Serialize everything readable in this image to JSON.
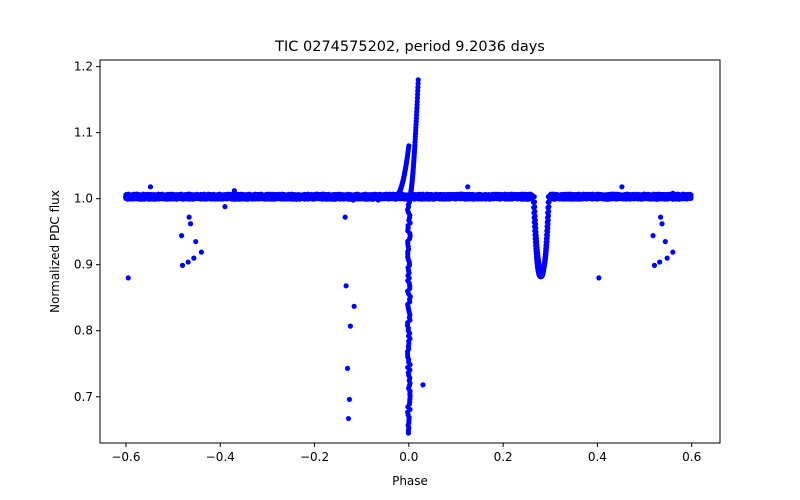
{
  "chart_data": {
    "type": "scatter",
    "title": "TIC 0274575202, period 9.2036 days",
    "xlabel": "Phase",
    "ylabel": "Normalized PDC flux",
    "xlim": [
      -0.655,
      0.66
    ],
    "ylim": [
      0.63,
      1.21
    ],
    "xticks": [
      -0.6,
      -0.4,
      -0.2,
      0.0,
      0.2,
      0.4,
      0.6
    ],
    "xtick_labels": [
      "−0.6",
      "−0.4",
      "−0.2",
      "0.0",
      "0.2",
      "0.4",
      "0.6"
    ],
    "yticks": [
      0.7,
      0.8,
      0.9,
      1.0,
      1.1,
      1.2
    ],
    "ytick_labels": [
      "0.7",
      "0.8",
      "0.9",
      "1.0",
      "1.1",
      "1.2"
    ],
    "grid": false,
    "marker_color": "#0000ff",
    "baseline": {
      "phase_range": [
        -0.6,
        0.6
      ],
      "flux": 1.003
    },
    "features": [
      {
        "name": "primary-eclipse",
        "center": 0.0,
        "min_flux": 0.645
      },
      {
        "name": "pre-eclipse-brightening",
        "phase_range": [
          -0.03,
          0.0
        ],
        "max_flux": 1.08
      },
      {
        "name": "post-eclipse-spike",
        "phase_range": [
          0.0,
          0.02
        ],
        "max_flux": 1.18
      },
      {
        "name": "secondary-eclipse",
        "center": 0.28,
        "min_flux": 0.882
      }
    ],
    "outliers": [
      [
        -0.595,
        0.88
      ],
      [
        -0.482,
        0.944
      ],
      [
        -0.48,
        0.899
      ],
      [
        -0.468,
        0.904
      ],
      [
        -0.466,
        0.972
      ],
      [
        -0.463,
        0.962
      ],
      [
        -0.456,
        0.91
      ],
      [
        -0.452,
        0.935
      ],
      [
        -0.44,
        0.919
      ],
      [
        -0.39,
        0.988
      ],
      [
        -0.548,
        1.018
      ],
      [
        -0.37,
        1.012
      ],
      [
        -0.135,
        0.972
      ],
      [
        -0.133,
        0.868
      ],
      [
        -0.13,
        0.743
      ],
      [
        -0.126,
        0.696
      ],
      [
        -0.128,
        0.667
      ],
      [
        -0.124,
        0.807
      ],
      [
        -0.116,
        0.837
      ],
      [
        -0.118,
        0.998
      ],
      [
        -0.065,
        0.998
      ],
      [
        0.03,
        0.718
      ],
      [
        0.125,
        1.018
      ],
      [
        0.403,
        0.88
      ],
      [
        0.452,
        1.018
      ],
      [
        0.518,
        0.944
      ],
      [
        0.521,
        0.899
      ],
      [
        0.532,
        0.904
      ],
      [
        0.534,
        0.972
      ],
      [
        0.537,
        0.962
      ],
      [
        0.544,
        0.935
      ],
      [
        0.548,
        0.91
      ],
      [
        0.56,
        0.919
      ],
      [
        0.56,
        1.008
      ]
    ]
  }
}
